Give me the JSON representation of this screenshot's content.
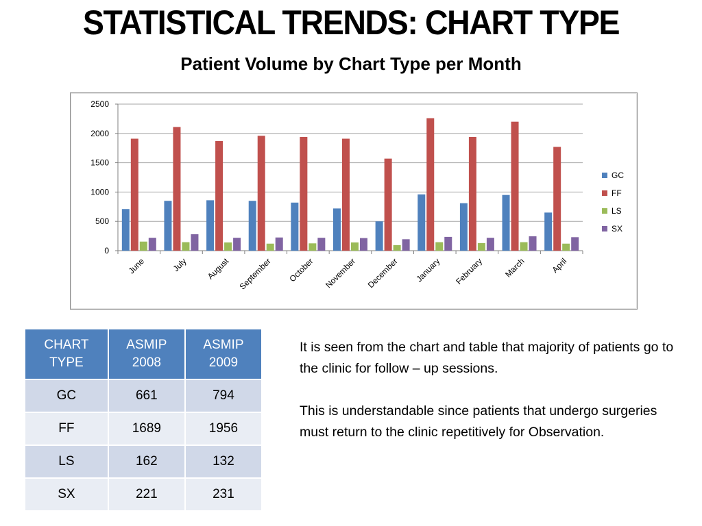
{
  "header": {
    "title": "STATISTICAL TRENDS: CHART TYPE",
    "subtitle": "Patient Volume by Chart Type per Month"
  },
  "chart_data": {
    "type": "bar",
    "categories": [
      "June",
      "July",
      "August",
      "September",
      "October",
      "November",
      "December",
      "January",
      "February",
      "March",
      "April"
    ],
    "series": [
      {
        "name": "GC",
        "color": "#4f81bd",
        "values": [
          710,
          850,
          860,
          850,
          820,
          720,
          500,
          960,
          810,
          950,
          650
        ]
      },
      {
        "name": "FF",
        "color": "#c0504d",
        "values": [
          1910,
          2110,
          1870,
          1960,
          1940,
          1910,
          1570,
          2260,
          1940,
          2200,
          1770
        ]
      },
      {
        "name": "LS",
        "color": "#9bbb59",
        "values": [
          155,
          145,
          140,
          120,
          125,
          140,
          95,
          145,
          130,
          145,
          120
        ]
      },
      {
        "name": "SX",
        "color": "#8064a2",
        "values": [
          220,
          280,
          220,
          225,
          220,
          215,
          195,
          235,
          220,
          245,
          230
        ]
      }
    ],
    "yticks": [
      "0",
      "500",
      "1000",
      "1500",
      "2000",
      "2500"
    ],
    "ylim": [
      0,
      2500
    ],
    "grid": true,
    "legend": "right",
    "xlabel": "",
    "ylabel": ""
  },
  "table": {
    "headers": [
      [
        "CHART",
        "TYPE"
      ],
      [
        "ASMIP",
        "2008"
      ],
      [
        "ASMIP",
        "2009"
      ]
    ],
    "rows": [
      [
        "GC",
        "661",
        "794"
      ],
      [
        "FF",
        "1689",
        "1956"
      ],
      [
        "LS",
        "162",
        "132"
      ],
      [
        "SX",
        "221",
        "231"
      ]
    ]
  },
  "notes": [
    "It is seen from the chart and table that majority of patients go to the clinic for follow – up sessions.",
    "This is understandable since  patients that undergo surgeries must return to the clinic repetitively  for Observation."
  ]
}
